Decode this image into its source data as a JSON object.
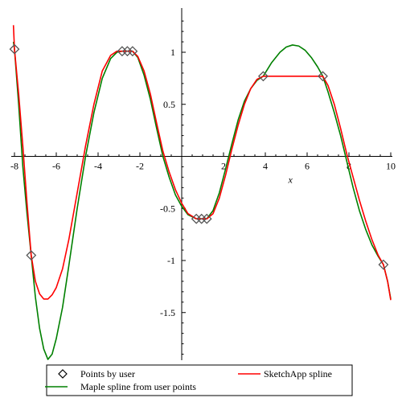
{
  "chart_data": {
    "type": "line",
    "xlabel": "x",
    "ylabel": "",
    "xlim": [
      -8,
      10
    ],
    "ylim": [
      -2,
      1.35
    ],
    "x_ticks": [
      {
        "value": -8,
        "label": "-8"
      },
      {
        "value": -6,
        "label": "-6"
      },
      {
        "value": -4,
        "label": "-4"
      },
      {
        "value": -2,
        "label": "-2"
      },
      {
        "value": 2,
        "label": "2"
      },
      {
        "value": 4,
        "label": "4"
      },
      {
        "value": 6,
        "label": "6"
      },
      {
        "value": 8,
        "label": "8"
      },
      {
        "value": 10,
        "label": "10"
      }
    ],
    "y_ticks": [
      {
        "value": 1,
        "label": "1"
      },
      {
        "value": 0.5,
        "label": "0.5"
      },
      {
        "value": -0.5,
        "label": "-0.5"
      },
      {
        "value": -1,
        "label": "-1"
      },
      {
        "value": -1.5,
        "label": "-1.5"
      }
    ],
    "grid": false,
    "legend_placement": "bottom",
    "series": [
      {
        "name": "Points by user",
        "kind": "scatter",
        "marker": "diamond",
        "color": "#555555",
        "x": [
          -8.0,
          -7.2,
          -2.85,
          -2.6,
          -2.35,
          0.7,
          0.95,
          1.2,
          3.9,
          6.75,
          9.65
        ],
        "y": [
          1.03,
          -0.95,
          1.01,
          1.01,
          1.01,
          -0.6,
          -0.6,
          -0.6,
          0.77,
          0.77,
          -1.04
        ]
      },
      {
        "name": "SketchApp spline",
        "kind": "line",
        "color": "#ff0000",
        "x": [
          -8.05,
          -8.0,
          -7.8,
          -7.6,
          -7.4,
          -7.2,
          -7.0,
          -6.8,
          -6.6,
          -6.4,
          -6.2,
          -6.0,
          -5.7,
          -5.4,
          -5.0,
          -4.6,
          -4.2,
          -3.8,
          -3.4,
          -3.1,
          -2.85,
          -2.6,
          -2.35,
          -2.1,
          -1.8,
          -1.5,
          -1.2,
          -0.9,
          -0.6,
          -0.3,
          0.0,
          0.3,
          0.7,
          0.95,
          1.2,
          1.5,
          1.8,
          2.1,
          2.4,
          2.7,
          3.0,
          3.3,
          3.6,
          3.9,
          4.5,
          5.5,
          6.75,
          7.0,
          7.3,
          7.6,
          7.9,
          8.2,
          8.5,
          8.8,
          9.1,
          9.4,
          9.65,
          9.85,
          10.0
        ],
        "y": [
          1.26,
          1.03,
          0.6,
          0.1,
          -0.45,
          -0.95,
          -1.2,
          -1.32,
          -1.37,
          -1.37,
          -1.33,
          -1.26,
          -1.08,
          -0.8,
          -0.35,
          0.1,
          0.5,
          0.82,
          0.97,
          1.01,
          1.01,
          1.01,
          1.01,
          0.96,
          0.82,
          0.6,
          0.32,
          0.05,
          -0.15,
          -0.32,
          -0.45,
          -0.55,
          -0.6,
          -0.6,
          -0.6,
          -0.55,
          -0.4,
          -0.18,
          0.07,
          0.3,
          0.5,
          0.65,
          0.74,
          0.77,
          0.77,
          0.77,
          0.77,
          0.68,
          0.5,
          0.27,
          0.02,
          -0.2,
          -0.42,
          -0.62,
          -0.8,
          -0.95,
          -1.04,
          -1.2,
          -1.38
        ]
      },
      {
        "name": "Maple spline from user points",
        "kind": "line",
        "color": "#008000",
        "x": [
          -8.05,
          -8.0,
          -7.8,
          -7.6,
          -7.4,
          -7.2,
          -7.0,
          -6.8,
          -6.6,
          -6.4,
          -6.2,
          -6.0,
          -5.7,
          -5.4,
          -5.0,
          -4.6,
          -4.2,
          -3.8,
          -3.4,
          -3.1,
          -2.85,
          -2.6,
          -2.35,
          -2.1,
          -1.8,
          -1.5,
          -1.2,
          -0.9,
          -0.6,
          -0.3,
          0.0,
          0.3,
          0.7,
          0.95,
          1.2,
          1.5,
          1.8,
          2.1,
          2.4,
          2.7,
          3.0,
          3.3,
          3.6,
          3.9,
          4.3,
          4.7,
          5.0,
          5.3,
          5.6,
          5.9,
          6.2,
          6.5,
          6.75,
          7.0,
          7.3,
          7.6,
          7.9,
          8.2,
          8.5,
          8.8,
          9.1,
          9.4,
          9.65,
          9.85,
          10.0
        ],
        "y": [
          1.1,
          1.03,
          0.5,
          -0.1,
          -0.55,
          -0.95,
          -1.35,
          -1.65,
          -1.85,
          -1.95,
          -1.9,
          -1.75,
          -1.45,
          -1.05,
          -0.5,
          0.0,
          0.42,
          0.75,
          0.94,
          1.0,
          1.01,
          1.01,
          1.01,
          0.95,
          0.78,
          0.55,
          0.27,
          0.0,
          -0.2,
          -0.37,
          -0.48,
          -0.56,
          -0.6,
          -0.6,
          -0.6,
          -0.52,
          -0.35,
          -0.12,
          0.12,
          0.35,
          0.53,
          0.65,
          0.73,
          0.77,
          0.9,
          1.0,
          1.05,
          1.07,
          1.06,
          1.02,
          0.95,
          0.86,
          0.77,
          0.62,
          0.42,
          0.2,
          -0.05,
          -0.3,
          -0.52,
          -0.7,
          -0.85,
          -0.96,
          -1.04,
          -1.2,
          -1.37
        ]
      }
    ]
  }
}
